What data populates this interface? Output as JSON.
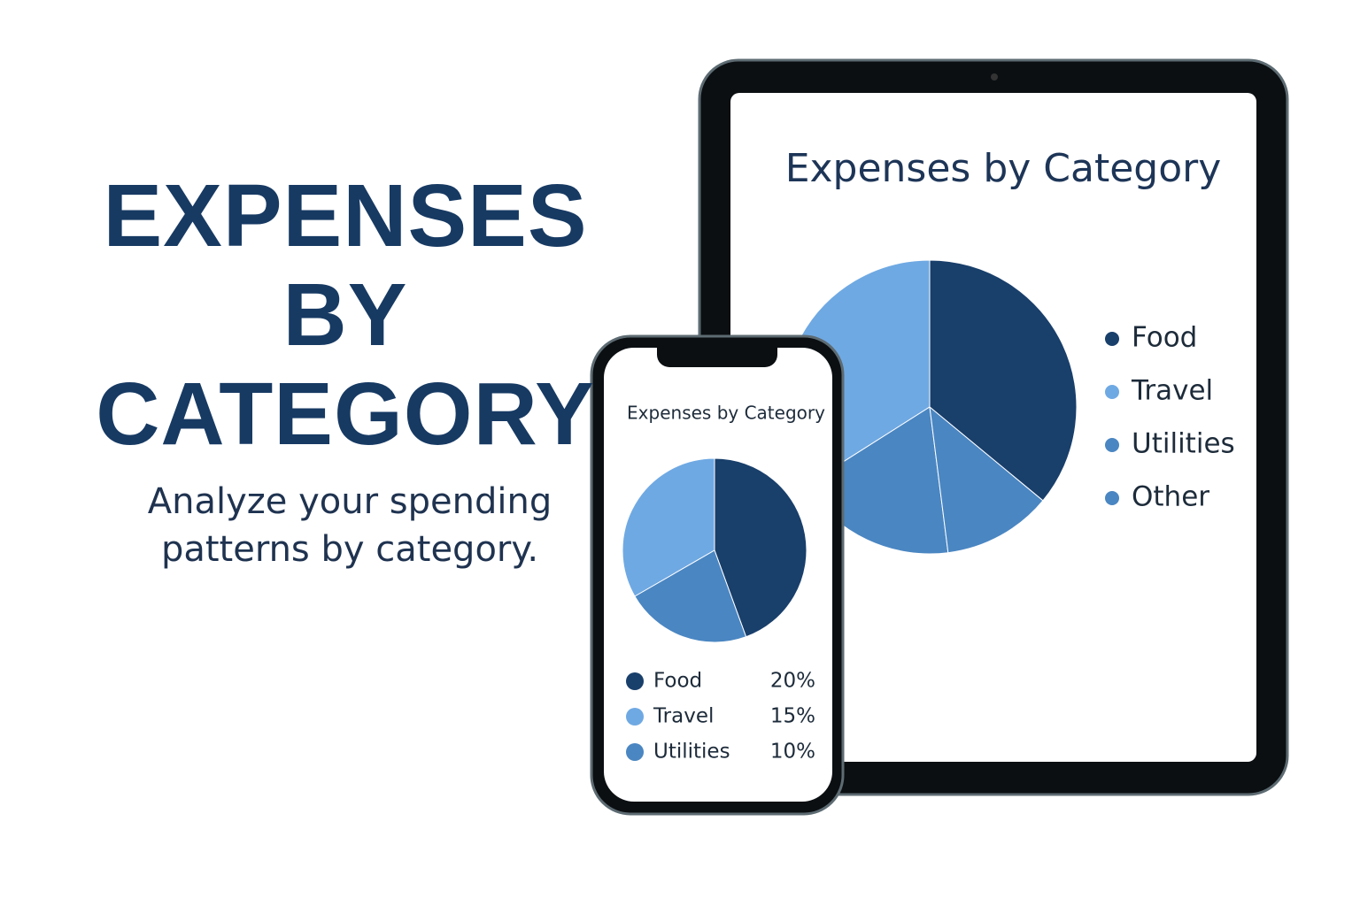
{
  "headline": {
    "title": "EXPENSES BY CATEGORY",
    "subtitle": "Analyze your spending patterns by category."
  },
  "chart_data": [
    {
      "type": "pie",
      "title": "Expenses by Category",
      "categories": [
        "Food",
        "Travel",
        "Utilities",
        "Other"
      ],
      "values": [
        36,
        34,
        18,
        12
      ],
      "colors": [
        "#193f6b",
        "#6fa9e3",
        "#4a86c2",
        "#4a86c2"
      ]
    },
    {
      "type": "pie",
      "title": "Expenses by Category",
      "categories": [
        "Food",
        "Travel",
        "Utilities"
      ],
      "values": [
        20,
        15,
        10
      ],
      "value_labels": [
        "20%",
        "15%",
        "10%"
      ],
      "colors": [
        "#193f6b",
        "#6fa9e3",
        "#4a86c2"
      ]
    }
  ]
}
